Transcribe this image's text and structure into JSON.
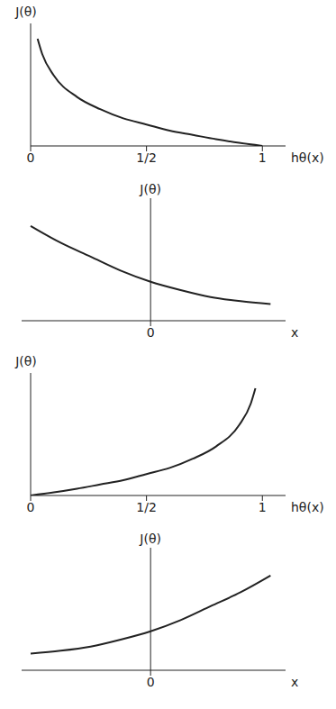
{
  "chart_data": [
    {
      "type": "line",
      "x_label": "hθ(x)",
      "y_label": "J(θ)",
      "color": "#222222",
      "line_style": "solid",
      "tick_labels": "x",
      "x": [
        0.03,
        0.05,
        0.1,
        0.2,
        0.3,
        0.4,
        0.5,
        0.6,
        0.7,
        0.8,
        0.9,
        1.0
      ],
      "values": [
        3.5,
        3.0,
        2.3,
        1.6,
        1.2,
        0.9,
        0.7,
        0.5,
        0.36,
        0.22,
        0.1,
        0
      ],
      "xlim": [
        0,
        1.1
      ],
      "xticks": [
        0,
        {
          "value": 0.5,
          "label": "1/2"
        },
        1
      ],
      "ylim": [
        0,
        4
      ]
    },
    {
      "type": "line",
      "x_label": "x",
      "y_label": "J(θ)",
      "color": "#222222",
      "line_style": "solid",
      "tick_labels": "x",
      "x": [
        -4,
        -3,
        -2,
        -1,
        0,
        1,
        2,
        3,
        4
      ],
      "values": [
        3.0,
        2.4,
        1.9,
        1.4,
        1.0,
        0.7,
        0.45,
        0.3,
        0.2
      ],
      "xlim": [
        -4.3,
        4.5
      ],
      "xticks": [
        0
      ],
      "ylim": [
        -0.4,
        4
      ]
    },
    {
      "type": "line",
      "x_label": "hθ(x)",
      "y_label": "J(θ)",
      "color": "#222222",
      "line_style": "solid",
      "tick_labels": "x",
      "x": [
        0,
        0.1,
        0.2,
        0.3,
        0.4,
        0.5,
        0.6,
        0.7,
        0.8,
        0.9,
        0.95,
        0.97
      ],
      "values": [
        0,
        0.1,
        0.22,
        0.36,
        0.5,
        0.7,
        0.9,
        1.2,
        1.6,
        2.3,
        3.0,
        3.5
      ],
      "xlim": [
        0,
        1.1
      ],
      "xticks": [
        0,
        {
          "value": 0.5,
          "label": "1/2"
        },
        1
      ],
      "ylim": [
        0,
        4
      ]
    },
    {
      "type": "line",
      "x_label": "x",
      "y_label": "J(θ)",
      "color": "#222222",
      "line_style": "solid",
      "tick_labels": "x",
      "x": [
        -4,
        -3,
        -2,
        -1,
        0,
        1,
        2,
        3,
        4
      ],
      "values": [
        0.2,
        0.3,
        0.45,
        0.7,
        1.0,
        1.4,
        1.9,
        2.4,
        3.0
      ],
      "xlim": [
        -4.3,
        4.5
      ],
      "xticks": [
        0
      ],
      "ylim": [
        -0.4,
        4
      ]
    }
  ]
}
